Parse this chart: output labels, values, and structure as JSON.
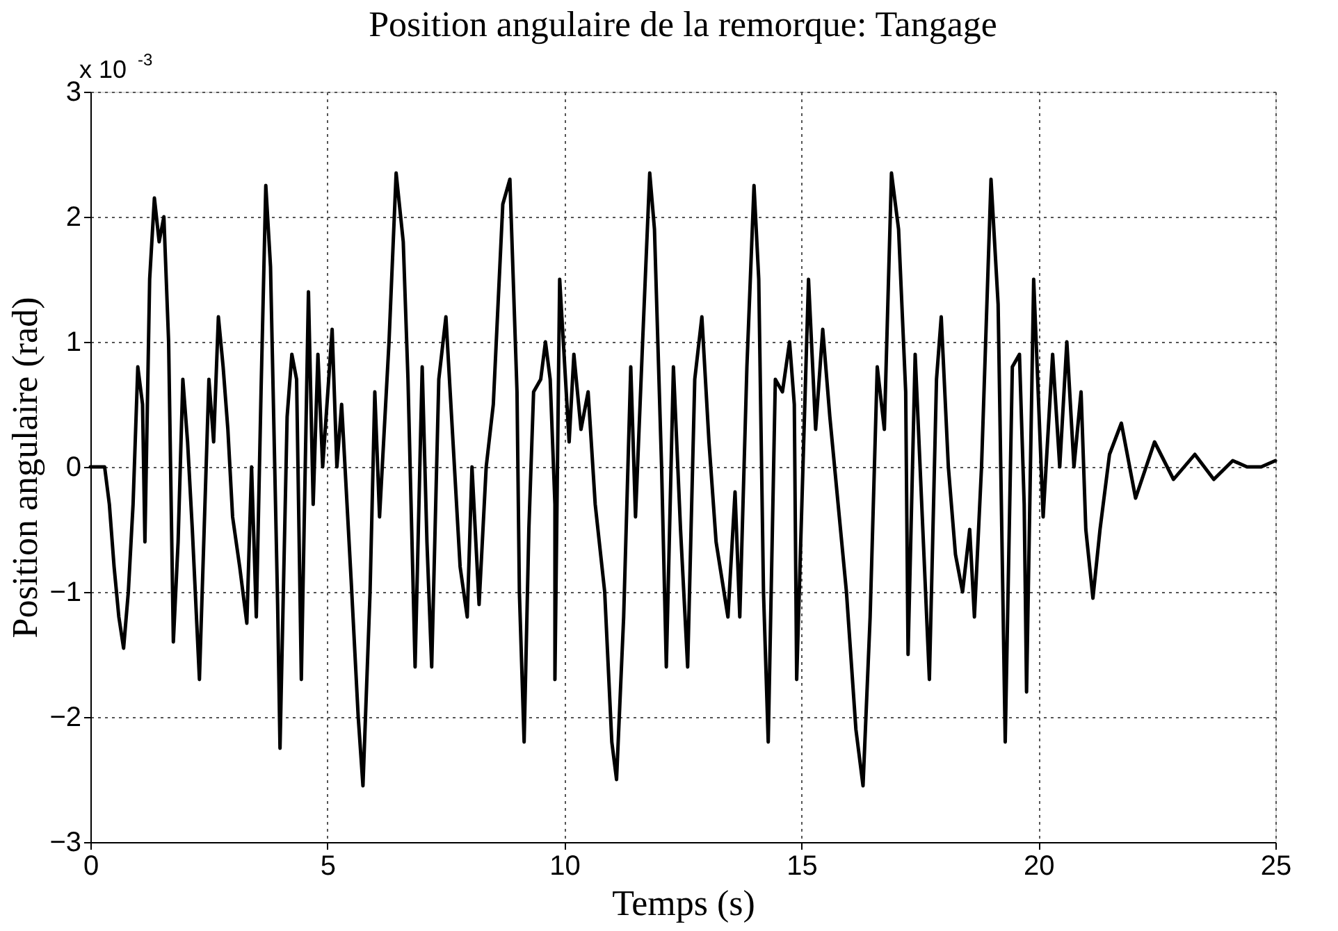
{
  "chart_data": {
    "type": "line",
    "title": "Position angulaire de la remorque: Tangage",
    "xlabel": "Temps (s)",
    "ylabel": "Position angulaire (rad)",
    "annotations": [
      "x 10$^{-3}$"
    ],
    "x": [
      0,
      0.3,
      0.4,
      0.5,
      0.6,
      0.7,
      0.8,
      0.9,
      1.0,
      1.1,
      1.15,
      1.25,
      1.35,
      1.45,
      1.55,
      1.65,
      1.75,
      1.85,
      1.95,
      2.05,
      2.15,
      2.3,
      2.4,
      2.5,
      2.6,
      2.7,
      2.8,
      2.9,
      3.0,
      3.15,
      3.3,
      3.4,
      3.5,
      3.6,
      3.7,
      3.8,
      3.95,
      4.0,
      4.15,
      4.25,
      4.35,
      4.45,
      4.6,
      4.7,
      4.8,
      4.9,
      5.1,
      5.2,
      5.3,
      5.5,
      5.65,
      5.75,
      5.9,
      6.0,
      6.1,
      6.3,
      6.45,
      6.6,
      6.7,
      6.85,
      7.0,
      7.1,
      7.2,
      7.35,
      7.5,
      7.65,
      7.8,
      7.95,
      8.05,
      8.2,
      8.35,
      8.5,
      8.7,
      8.85,
      9.0,
      9.05,
      9.15,
      9.25,
      9.35,
      9.5,
      9.6,
      9.7,
      9.8,
      9.8,
      9.9,
      10.1,
      10.2,
      10.35,
      10.5,
      10.65,
      10.85,
      11.0,
      11.1,
      11.25,
      11.4,
      11.5,
      11.65,
      11.8,
      11.9,
      12.05,
      12.15,
      12.3,
      12.45,
      12.6,
      12.75,
      12.9,
      13.05,
      13.2,
      13.45,
      13.6,
      13.7,
      13.85,
      14.0,
      14.1,
      14.2,
      14.3,
      14.45,
      14.6,
      14.75,
      14.85,
      14.9,
      15.15,
      15.3,
      15.45,
      15.6,
      15.8,
      15.95,
      16.15,
      16.3,
      16.45,
      16.6,
      16.75,
      16.9,
      17.05,
      17.2,
      17.25,
      17.4,
      17.55,
      17.7,
      17.85,
      17.95,
      18.1,
      18.25,
      18.4,
      18.55,
      18.65,
      18.8,
      19.0,
      19.15,
      19.3,
      19.45,
      19.6,
      19.7,
      19.75,
      19.9,
      20.1,
      20.3,
      20.45,
      20.6,
      20.75,
      20.9,
      21.0,
      21.15,
      21.3,
      21.5,
      21.75,
      22.05,
      22.45,
      22.85,
      23.3,
      23.7,
      24.1,
      24.4,
      24.7,
      25.0
    ],
    "series": [
      {
        "color": "#000000",
        "values": [
          0,
          0,
          -0.3,
          -0.8,
          -1.2,
          -1.45,
          -1.0,
          -0.3,
          0.8,
          0.5,
          -0.6,
          1.5,
          2.15,
          1.8,
          2.0,
          1.0,
          -1.4,
          -0.6,
          0.7,
          0.2,
          -0.5,
          -1.7,
          -0.5,
          0.7,
          0.2,
          1.2,
          0.8,
          0.3,
          -0.4,
          -0.8,
          -1.25,
          0.0,
          -1.2,
          0.6,
          2.25,
          1.6,
          -1.1,
          -2.25,
          0.4,
          0.9,
          0.7,
          -1.7,
          1.4,
          -0.3,
          0.9,
          0.0,
          1.1,
          0.0,
          0.5,
          -0.9,
          -2.0,
          -2.55,
          -1.0,
          0.6,
          -0.4,
          1.0,
          2.35,
          1.8,
          0.7,
          -1.6,
          0.8,
          -0.6,
          -1.6,
          0.7,
          1.2,
          0.2,
          -0.8,
          -1.2,
          0.0,
          -1.1,
          0.0,
          0.5,
          2.1,
          2.3,
          0.6,
          -1.0,
          -2.2,
          -0.5,
          0.6,
          0.7,
          1.0,
          0.7,
          -0.3,
          -1.7,
          1.5,
          0.2,
          0.9,
          0.3,
          0.6,
          -0.3,
          -1.0,
          -2.2,
          -2.5,
          -1.2,
          0.8,
          -0.4,
          1.0,
          2.35,
          1.9,
          0.0,
          -1.6,
          0.8,
          -0.5,
          -1.6,
          0.7,
          1.2,
          0.2,
          -0.6,
          -1.2,
          -0.2,
          -1.2,
          0.8,
          2.25,
          1.5,
          -1.0,
          -2.2,
          0.7,
          0.6,
          1.0,
          0.5,
          -1.7,
          1.5,
          0.3,
          1.1,
          0.4,
          -0.4,
          -1.0,
          -2.1,
          -2.55,
          -1.2,
          0.8,
          0.3,
          2.35,
          1.9,
          0.6,
          -1.5,
          0.9,
          -0.4,
          -1.7,
          0.7,
          1.2,
          0.0,
          -0.7,
          -1.0,
          -0.5,
          -1.2,
          0.0,
          2.3,
          1.3,
          -2.2,
          0.8,
          0.9,
          -0.3,
          -1.8,
          1.5,
          -0.4,
          0.9,
          0.0,
          1.0,
          0.0,
          0.6,
          -0.5,
          -1.05,
          -0.5,
          0.1,
          0.35,
          -0.25,
          0.2,
          -0.1,
          0.1,
          -0.1,
          0.05,
          0.0,
          0.0,
          0.05
        ]
      }
    ],
    "xlim": [
      0,
      25
    ],
    "xticks": [
      0,
      5,
      10,
      15,
      20,
      25
    ],
    "ylim": [
      -3,
      3
    ],
    "yticks": [
      -3,
      -2,
      -1,
      0,
      1,
      2,
      3
    ],
    "grid": true,
    "line_style": "solid",
    "marker": "none"
  }
}
